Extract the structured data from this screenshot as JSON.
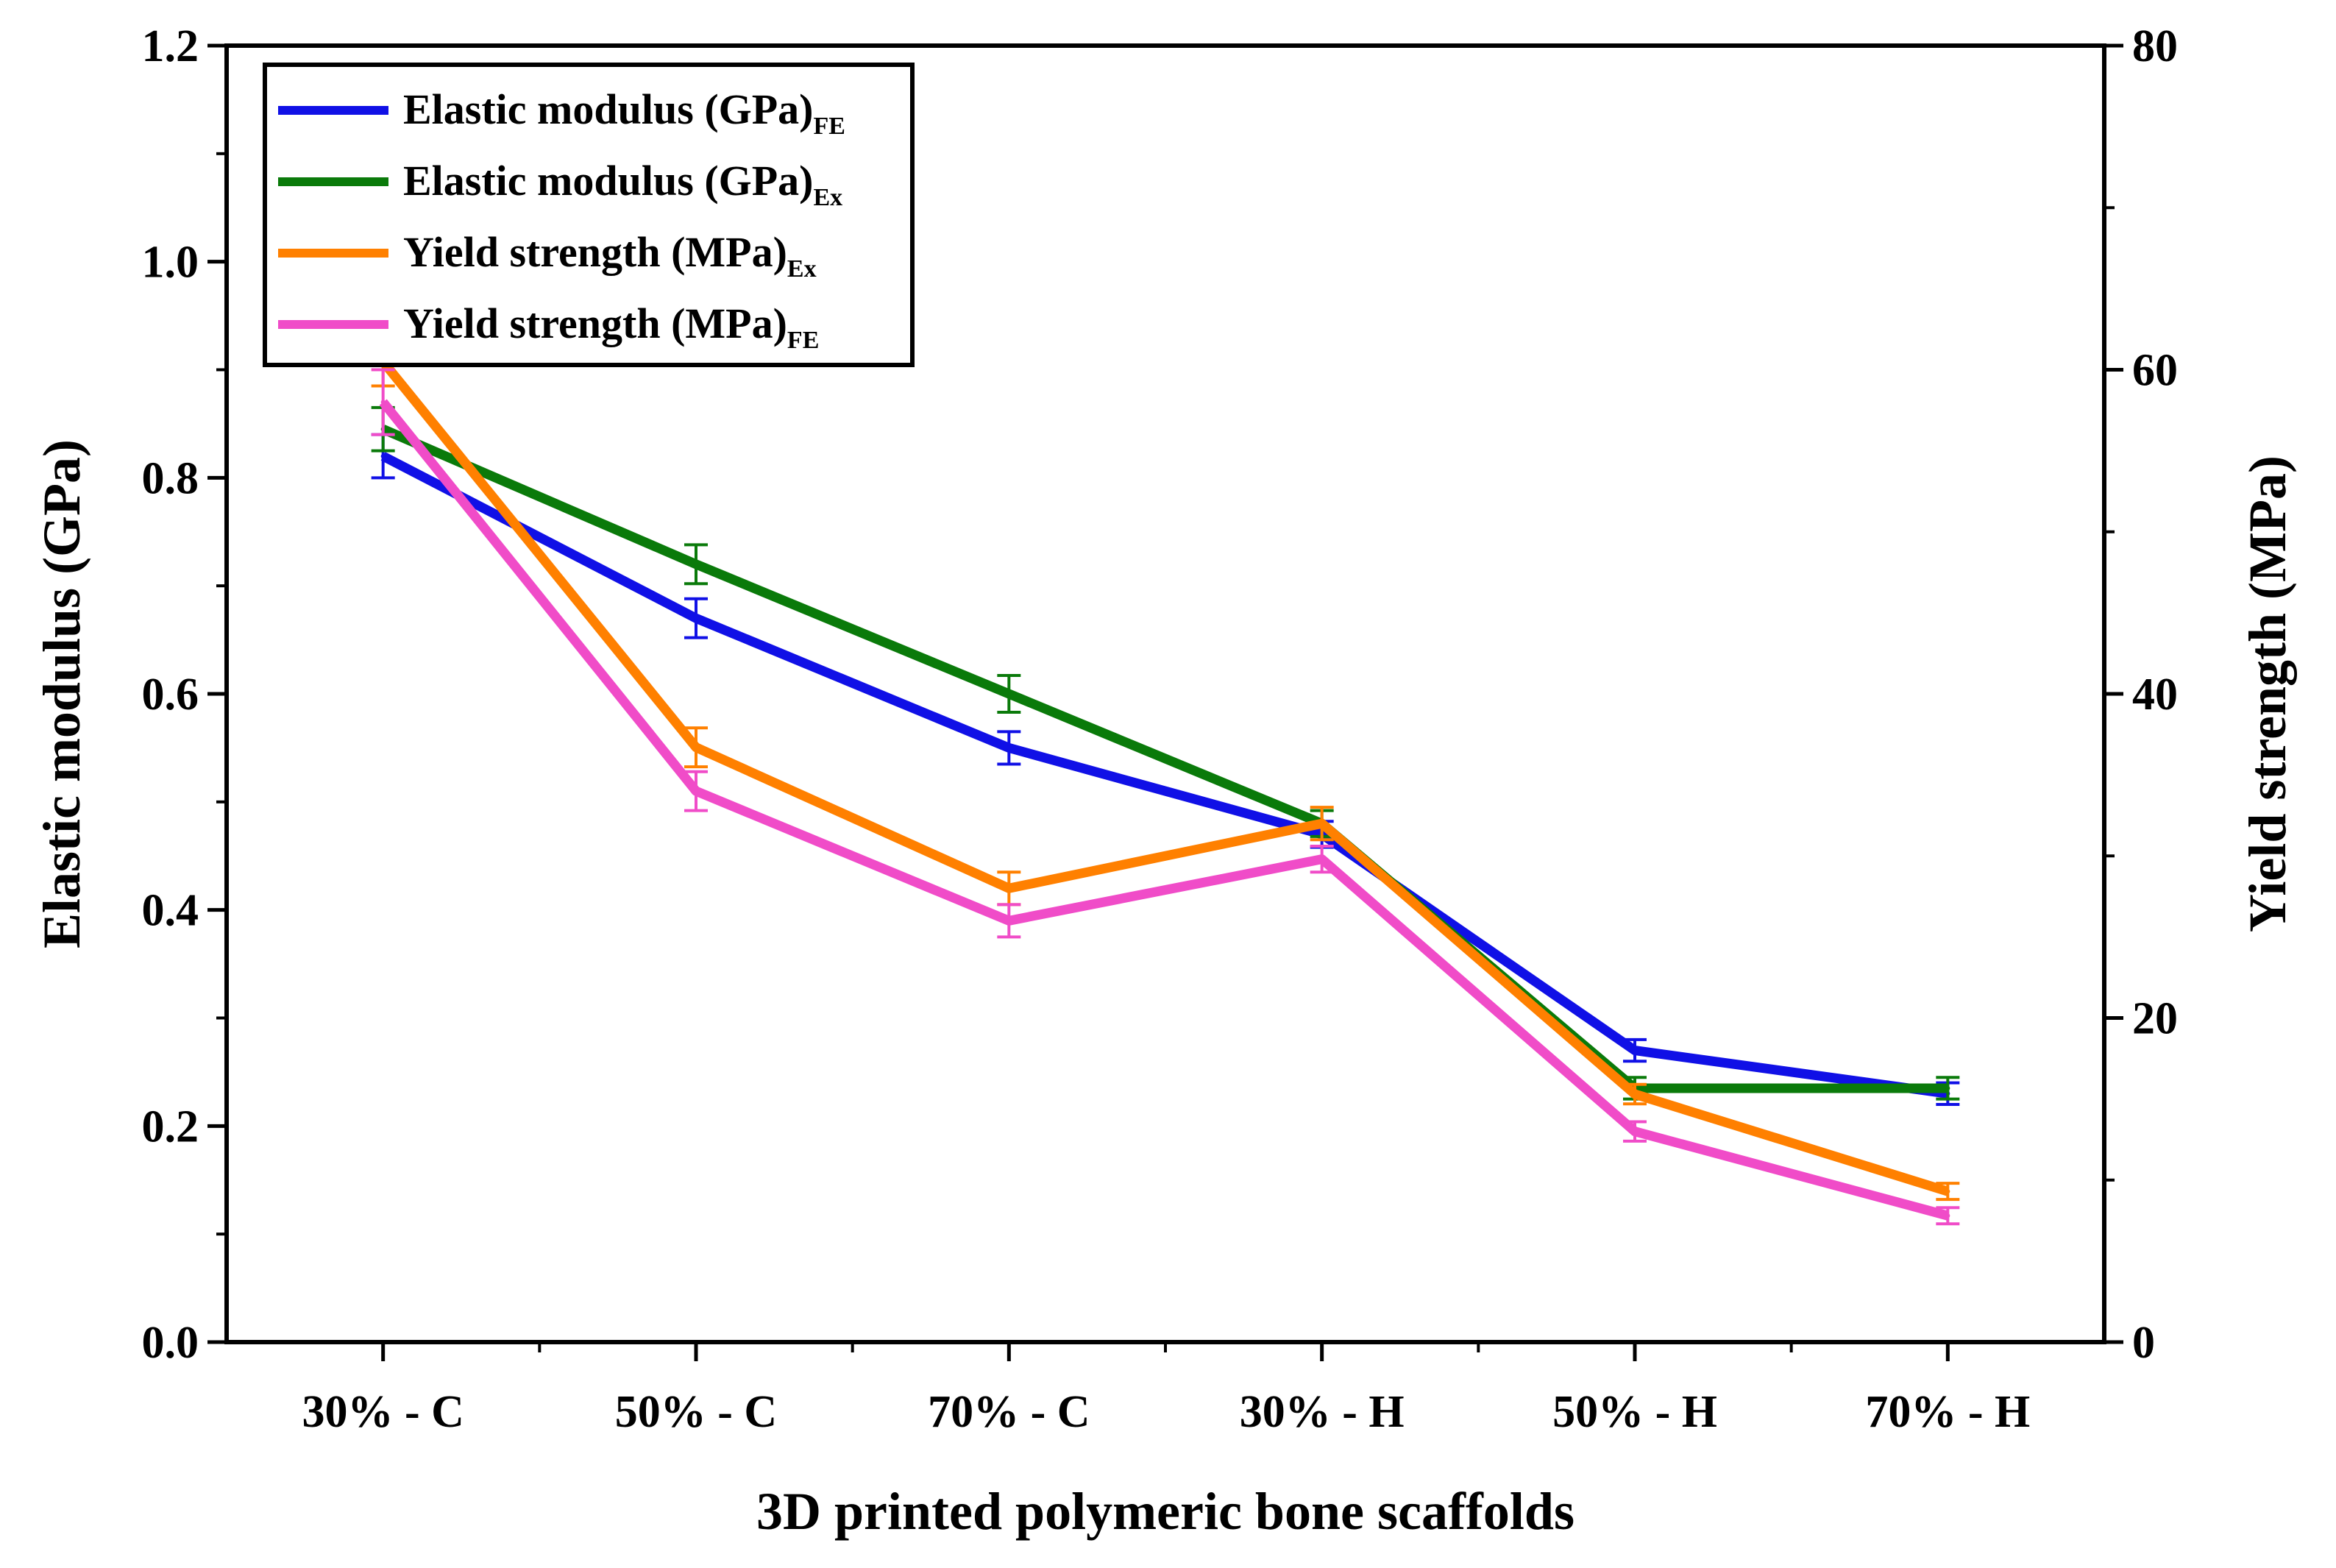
{
  "chart_data": {
    "type": "line",
    "title": "",
    "xlabel": "3D printed polymeric bone scaffolds",
    "ylabel": "Elastic modulus (GPa)",
    "y2label": "Yield strength (MPa)",
    "categories": [
      "30% - C",
      "50% - C",
      "70% - C",
      "30% - H",
      "50% - H",
      "70% - H"
    ],
    "ylim": [
      0,
      1.2
    ],
    "y2lim": [
      0,
      80
    ],
    "yticks": [
      "0.0",
      "0.2",
      "0.4",
      "0.6",
      "0.8",
      "1.0",
      "1.2"
    ],
    "y2ticks": [
      "0",
      "20",
      "40",
      "60",
      "80"
    ],
    "legend_position": "top-left",
    "series": [
      {
        "name": "Elastic modulus (GPa)",
        "subscript": "FE",
        "axis": "left",
        "color": "#1010e6",
        "values": [
          0.82,
          0.67,
          0.55,
          0.47,
          0.27,
          0.23
        ],
        "errors": [
          0.02,
          0.018,
          0.015,
          0.012,
          0.01,
          0.01
        ]
      },
      {
        "name": "Elastic modulus (GPa)",
        "subscript": "Ex",
        "axis": "left",
        "color": "#0a7a0a",
        "values": [
          0.845,
          0.72,
          0.6,
          0.48,
          0.235,
          0.235
        ],
        "errors": [
          0.02,
          0.018,
          0.017,
          0.012,
          0.01,
          0.01
        ]
      },
      {
        "name": "Yield strength (MPa)",
        "subscript": "Ex",
        "axis": "right",
        "color": "#ff8000",
        "values": [
          60.5,
          36.7,
          28.0,
          32.0,
          15.3,
          9.3
        ],
        "errors": [
          1.5,
          1.2,
          1.0,
          1.0,
          0.6,
          0.5
        ]
      },
      {
        "name": "Yield strength (MPa)",
        "subscript": "FE",
        "axis": "right",
        "color": "#f04cc8",
        "values": [
          58.0,
          34.0,
          26.0,
          29.8,
          13.0,
          7.8
        ],
        "errors": [
          2.0,
          1.2,
          1.0,
          0.8,
          0.6,
          0.5
        ]
      }
    ]
  }
}
